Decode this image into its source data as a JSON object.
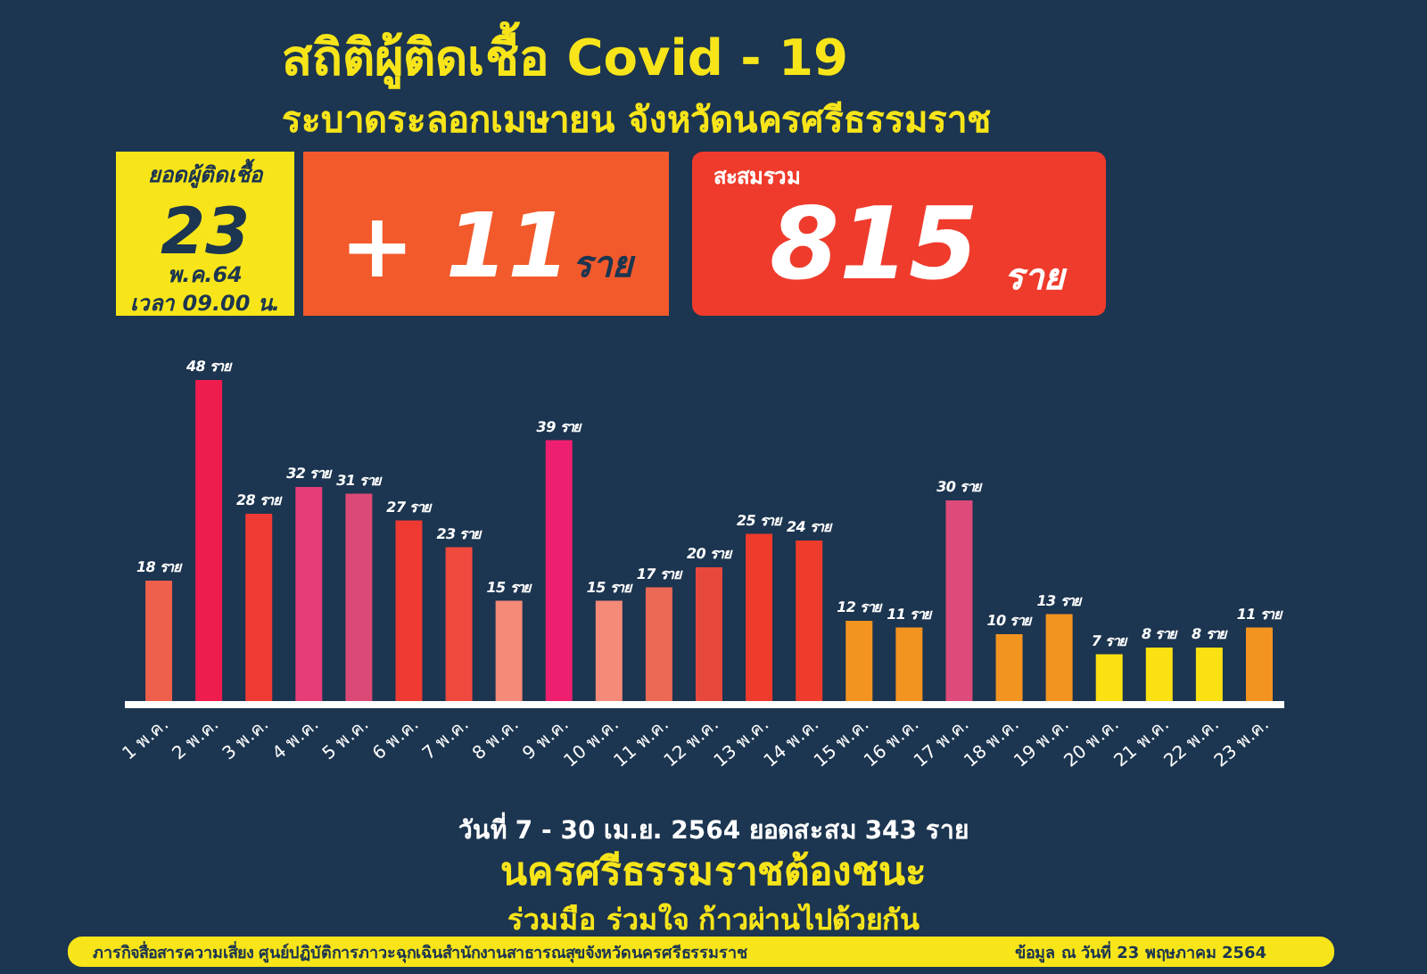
{
  "chart_data": {
    "type": "bar",
    "title": "สถิติผู้ติดเชื้อ Covid - 19",
    "subtitle": "ระบาดระลอกเมษายน จังหวัดนครศรีธรรมราช",
    "categories": [
      "1 พ.ค.",
      "2 พ.ค.",
      "3 พ.ค.",
      "4 พ.ค.",
      "5 พ.ค.",
      "6 พ.ค.",
      "7 พ.ค.",
      "8 พ.ค.",
      "9 พ.ค.",
      "10 พ.ค.",
      "11 พ.ค.",
      "12 พ.ค.",
      "13 พ.ค.",
      "14 พ.ค.",
      "15 พ.ค.",
      "16 พ.ค.",
      "17 พ.ค.",
      "18 พ.ค.",
      "19 พ.ค.",
      "20 พ.ค.",
      "21 พ.ค.",
      "22 พ.ค.",
      "23 พ.ค."
    ],
    "values": [
      18,
      48,
      28,
      32,
      31,
      27,
      23,
      15,
      39,
      15,
      17,
      20,
      25,
      24,
      12,
      11,
      30,
      10,
      13,
      7,
      8,
      8,
      11
    ],
    "colors": [
      "#ee5f4c",
      "#ef1c4e",
      "#ef3b33",
      "#e63d78",
      "#db4a76",
      "#ee3a33",
      "#f04a3f",
      "#f58a78",
      "#ee1f6e",
      "#f58a78",
      "#ec6955",
      "#e8483c",
      "#ef3b2c",
      "#ef3b2c",
      "#f39420",
      "#f39420",
      "#de4a7a",
      "#f39420",
      "#f39420",
      "#fbe112",
      "#fbe112",
      "#fbe112",
      "#f39420"
    ],
    "value_labels": [
      "18 ราย",
      "48 ราย",
      "28 ราย",
      "32 ราย",
      "31 ราย",
      "27 ราย",
      "23 ราย",
      "15 ราย",
      "39 ราย",
      "15 ราย",
      "17 ราย",
      "20 ราย",
      "25 ราย",
      "24 ราย",
      "12 ราย",
      "11 ราย",
      "30 ราย",
      "10 ราย",
      "13 ราย",
      "7 ราย",
      "8 ราย",
      "8 ราย",
      "11 ราย"
    ],
    "annotations": [
      "ยอดผู้ติดเชื้อ",
      "23",
      "พ.ค.64",
      "เวลา 09.00 น.",
      "+ 11",
      "ราย",
      "สะสมรวม",
      "815",
      "ราย",
      "วันที่ 7 - 30 เม.ย. 2564 ยอดสะสม 343 ราย",
      "นครศรีธรรมราชต้องชนะ",
      "ร่วมมือ ร่วมใจ ก้าวผ่านไปด้วยกัน",
      "ภารกิจสื่อสารความเสี่ยง ศูนย์ปฏิบัติการภาวะฉุกเฉินสำนักงานสาธารณสุขจังหวัดนครศรีธรรมราช",
      "ข้อมูล ณ วันที่ 23 พฤษภาคม 2564"
    ]
  }
}
